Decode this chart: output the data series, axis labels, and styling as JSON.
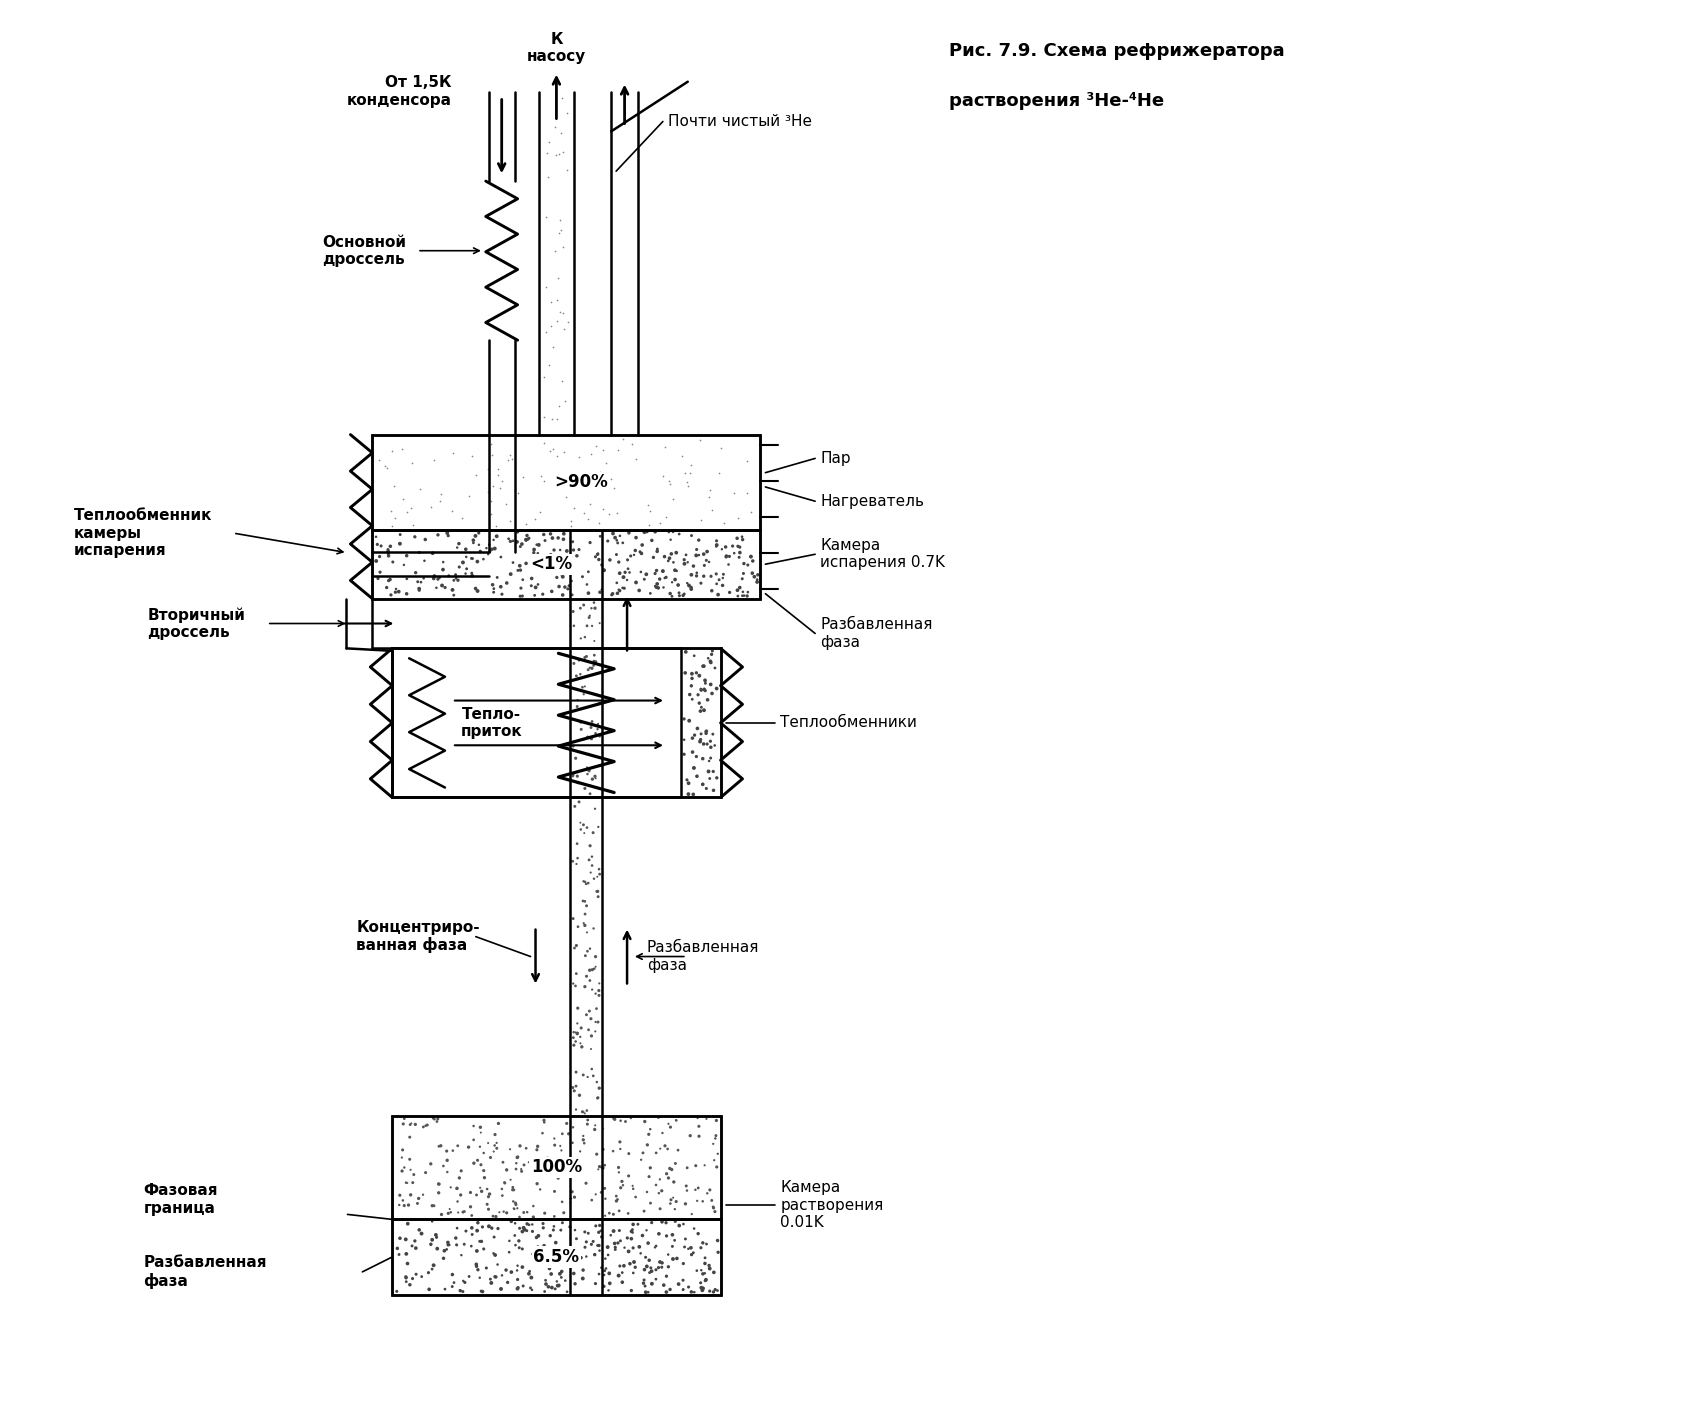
{
  "title_line1": "Рис. 7.9. Схема рефрижератора",
  "title_line2": "растворения ³He-⁴He",
  "bg_color": "#ffffff",
  "labels": {
    "k_nasosu": "К\nнасосу",
    "ot_kondensora": "От 1,5К\nконденсора",
    "pochti_chisty": "Почти чистый ³He",
    "osnovnoy_drossel": "Основной\nдроссель",
    "par": "Пар",
    "nagrevatel": "Нагреватель",
    "kamera_ispareniya": "Камера\nиспарения 0.7K",
    "teploobmennik_kamery": "Теплообменник\nкамеры\nиспарения",
    "razb_faza_top": "Разбавленная\nфаза",
    "vtorichny_drossel": "Вторичный\nдроссель",
    "teplopritok": "Тепло-\nприток",
    "teploobmenniki": "Теплообменники",
    "kontsentrir_faza": "Концентриро-\nванная фаза",
    "razb_faza_mid": "Разбавленная\nфаза",
    "fazovaya_granitsa": "Фазовая\nграница",
    "razb_faza_bot": "Разбавленная\nфаза",
    "kamera_rastvoreniya": "Камера\nрастворения\n0.01K",
    "label_90": ">90%",
    "label_1": "<1%",
    "label_100": "100%",
    "label_65": "6.5%"
  }
}
